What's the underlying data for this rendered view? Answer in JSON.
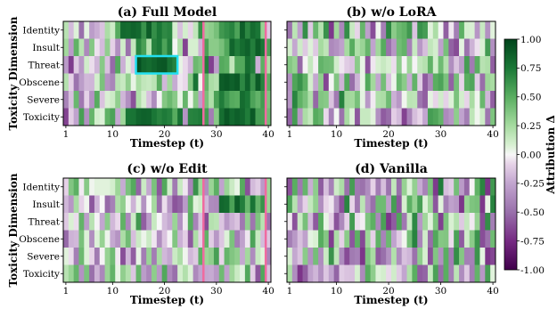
{
  "chart_data": {
    "type": "heatmap",
    "ylabel": "Toxicity Dimension",
    "xlabel": "Timestep (t)",
    "rows": [
      "Identity",
      "Insult",
      "Threat",
      "Obscene",
      "Severe",
      "Toxicity"
    ],
    "x_range": [
      1,
      40
    ],
    "x_ticks": [
      1,
      10,
      20,
      30,
      40
    ],
    "color_scale": {
      "label": "Attribution Δ",
      "min": -1.0,
      "max": 1.0,
      "ticks": [
        "1.00",
        "0.75",
        "0.50",
        "0.25",
        "0.00",
        "-0.25",
        "-0.50",
        "-0.75",
        "-1.00"
      ],
      "colormap": "PRGn",
      "low_color": "#762a83",
      "mid_color": "#f7f7f7",
      "high_color": "#1b7837"
    },
    "panels": [
      {
        "title": "(a) Full Model",
        "marker_lines_t": [
          28,
          40
        ],
        "marker_color": "#f06aa0",
        "highlight": {
          "t_start": 15,
          "t_end": 22,
          "row": "Threat",
          "color": "#22e0f0"
        },
        "values": [
          [
            0.19,
            -0.17,
            0.07,
            -0.5,
            0.05,
            -0.29,
            -0.22,
            -0.14,
            0.23,
            0.12,
            0.52,
            0.82,
            0.81,
            0.85,
            0.82,
            0.63,
            0.88,
            0.65,
            0.76,
            0.67,
            0.7,
            0.09,
            -0.15,
            0.1,
            -0.08,
            0.16,
            0.64,
            0.3,
            0.33,
            0.4,
            0.6,
            0.65,
            0.7,
            0.55,
            0.87,
            0.68,
            0.81,
            0.76,
            0.3,
            -0.12
          ],
          [
            0.26,
            -0.3,
            0.48,
            0.19,
            -0.38,
            0.36,
            -0.05,
            -0.17,
            0.32,
            -0.09,
            -0.35,
            0.11,
            -0.49,
            0.15,
            0.69,
            0.57,
            0.2,
            0.7,
            0.75,
            0.55,
            0.72,
            0.01,
            0.23,
            -0.66,
            0.09,
            0.09,
            -0.2,
            0.56,
            0.34,
            0.34,
            0.4,
            0.53,
            0.84,
            0.73,
            0.81,
            0.86,
            0.72,
            0.88,
            0.76,
            0.56
          ],
          [
            -0.3,
            -0.69,
            -0.12,
            -0.31,
            0.11,
            -0.06,
            -0.19,
            0.35,
            -0.15,
            -0.52,
            0.52,
            -0.21,
            0.07,
            -0.13,
            0.94,
            0.84,
            0.81,
            0.85,
            0.9,
            0.91,
            0.78,
            0.71,
            0.04,
            -0.07,
            -0.19,
            0.44,
            0.39,
            0.72,
            -0.67,
            -0.29,
            0.52,
            0.49,
            0.16,
            0.53,
            0.53,
            0.8,
            0.72,
            -0.21,
            0.49,
            0.22
          ],
          [
            0.2,
            -0.09,
            -0.48,
            -0.29,
            -0.18,
            -0.19,
            0.1,
            0.39,
            -0.33,
            -0.4,
            0.19,
            0.14,
            0.32,
            0.04,
            0.24,
            0.16,
            0.14,
            0.18,
            0.51,
            -0.18,
            0.26,
            -0.23,
            -0.04,
            -0.07,
            0.35,
            0.77,
            0.02,
            0.47,
            0.23,
            0.2,
            0.88,
            0.91,
            0.86,
            0.9,
            0.68,
            0.86,
            0.63,
            0.89,
            0.7,
            0.49
          ],
          [
            -0.41,
            -0.15,
            0.45,
            -0.46,
            -0.09,
            -0.34,
            0.51,
            -0.14,
            0.08,
            0.12,
            0.32,
            -0.19,
            -0.35,
            -0.61,
            0.22,
            0.09,
            -0.15,
            -0.37,
            -0.01,
            0.36,
            0.44,
            0.35,
            0.04,
            0.46,
            0.02,
            0.35,
            -0.28,
            0.4,
            0.22,
            0.56,
            0.73,
            0.61,
            0.52,
            0.5,
            0.81,
            0.75,
            0.55,
            0.47,
            0.59,
            0.38
          ],
          [
            -0.66,
            -0.1,
            -0.26,
            0.57,
            -0.35,
            0.46,
            0.1,
            0.07,
            0.48,
            0.55,
            -0.24,
            0.27,
            0.76,
            0.77,
            0.84,
            0.86,
            0.85,
            0.76,
            0.7,
            0.74,
            0.71,
            0.51,
            0.78,
            -0.33,
            0.7,
            0.71,
            0.73,
            0.59,
            -0.44,
            0.35,
            0.8,
            0.91,
            0.82,
            0.87,
            0.83,
            0.73,
            0.9,
            0.58,
            0.57,
            0.43
          ]
        ]
      },
      {
        "title": "(b) w/o LoRA",
        "marker_lines_t": [],
        "values": [
          [
            -0.49,
            0.18,
            -0.28,
            0.65,
            -0.12,
            0.45,
            0.2,
            0.63,
            -0.7,
            0.27,
            -0.39,
            0.65,
            0.14,
            -0.08,
            0.46,
            -0.28,
            -0.62,
            0.02,
            -0.43,
            0.68,
            0.34,
            0.44,
            0.48,
            0.6,
            -0.14,
            0.63,
            0.58,
            0.06,
            0.23,
            0.01,
            -0.56,
            -0.04,
            -0.43,
            0.49,
            0.09,
            0.08,
            -0.32,
            0.14,
            -0.34,
            0.06
          ],
          [
            0.1,
            -0.24,
            0.12,
            -0.12,
            0.07,
            -0.12,
            0.25,
            0.17,
            -0.38,
            -0.34,
            -0.27,
            0.25,
            0.51,
            0.22,
            0.29,
            0.46,
            -0.26,
            0.27,
            0.51,
            -0.49,
            -0.32,
            0.42,
            0.47,
            -0.42,
            0.14,
            -0.31,
            -0.16,
            0.16,
            0.1,
            -0.27,
            0.4,
            -0.55,
            -0.63,
            0.05,
            -0.48,
            -0.2,
            -0.05,
            0.08,
            0.59,
            -0.35
          ],
          [
            0.36,
            0.3,
            -0.53,
            -0.01,
            0.15,
            -0.02,
            0.47,
            0.43,
            0.42,
            0.11,
            -0.04,
            -0.11,
            -0.14,
            0.34,
            0.04,
            -0.6,
            -0.04,
            0.09,
            0.14,
            0.09,
            -0.06,
            0.33,
            -0.01,
            0.28,
            -0.01,
            0.16,
            0.2,
            0.48,
            0.1,
            0.43,
            0.2,
            -0.36,
            -0.14,
            -0.29,
            0.58,
            -0.45,
            0.5,
            0.19,
            0.22,
            -0.56
          ],
          [
            -0.35,
            0.54,
            0.63,
            0.49,
            0.1,
            -0.24,
            0.32,
            -0.65,
            0.01,
            0.37,
            -0.2,
            0.53,
            -0.51,
            -0.2,
            0.04,
            0.53,
            0.26,
            -0.25,
            0.41,
            -0.14,
            0.03,
            0.45,
            0.34,
            -0.23,
            0.47,
            -0.11,
            -0.57,
            -0.38,
            0.5,
            0.55,
            0.39,
            -0.55,
            0.41,
            -0.08,
            0.5,
            0.54,
            -0.11,
            -0.51,
            0.28,
            0.24
          ],
          [
            -0.32,
            0.69,
            0.48,
            0.39,
            0.22,
            -0.53,
            0.37,
            0.35,
            -0.14,
            -0.45,
            0.71,
            0.27,
            0.26,
            0.4,
            0.05,
            -0.31,
            -0.03,
            0.22,
            0.23,
            0.43,
            -0.21,
            -0.31,
            0.02,
            0.18,
            0.17,
            -0.47,
            -0.56,
            0.05,
            -0.08,
            0.11,
            -0.09,
            0.07,
            0.39,
            0.1,
            -0.08,
            0.24,
            0.02,
            0.45,
            -0.19,
            -0.56
          ],
          [
            -0.54,
            0.58,
            -0.32,
            0.23,
            0.15,
            0.51,
            0.46,
            -0.07,
            -0.42,
            0.01,
            -0.49,
            0.24,
            0.07,
            -0.59,
            0.14,
            0.14,
            0.06,
            -0.35,
            -0.57,
            -0.51,
            -0.1,
            -0.17,
            -0.66,
            -0.41,
            -0.16,
            -0.08,
            -0.25,
            0.58,
            0.54,
            0.47,
            -0.38,
            -0.32,
            0.33,
            -0.26,
            -0.43,
            0.17,
            0.02,
            0.12,
            -0.47,
            0.38
          ]
        ]
      },
      {
        "title": "(c) w/o Edit",
        "marker_lines_t": [
          28,
          40
        ],
        "marker_color": "#f06aa0",
        "values": [
          [
            -0.09,
            0.37,
            0.49,
            -0.03,
            0.35,
            0.02,
            0.06,
            0.06,
            0.06,
            0.1,
            0.28,
            -0.23,
            0.39,
            0.52,
            -0.54,
            0.13,
            -0.24,
            0.39,
            -0.59,
            0.53,
            0.11,
            -0.45,
            0.14,
            -0.04,
            -0.4,
            0.63,
            0.27,
            -0.36,
            0.29,
            0.49,
            -0.26,
            0.29,
            0.13,
            0.04,
            0.51,
            -0.61,
            -0.17,
            -0.11,
            -0.3,
            0.27
          ],
          [
            -0.19,
            -0.32,
            0.24,
            -0.09,
            0.02,
            -0.59,
            -0.19,
            0.0,
            -0.52,
            -0.42,
            0.22,
            0.32,
            0.02,
            -0.2,
            0.04,
            -0.34,
            0.0,
            0.25,
            -0.5,
            -0.06,
            -0.32,
            -0.6,
            -0.55,
            -0.3,
            0.48,
            0.06,
            0.11,
            -0.18,
            -0.37,
            -0.38,
            0.83,
            0.81,
            0.56,
            0.88,
            0.72,
            0.45,
            0.77,
            0.46,
            0.63,
            0.27
          ],
          [
            -0.12,
            0.08,
            -0.06,
            0.47,
            -0.29,
            0.19,
            -0.01,
            -0.25,
            0.34,
            -0.18,
            -0.07,
            0.48,
            -0.39,
            0.12,
            0.6,
            -0.56,
            -0.3,
            0.14,
            0.0,
            -0.17,
            -0.24,
            0.29,
            -0.34,
            -0.03,
            0.51,
            -0.41,
            -0.14,
            -0.63,
            0.2,
            0.18,
            -0.13,
            -0.31,
            -0.2,
            -0.14,
            -0.46,
            0.32,
            -0.47,
            0.38,
            0.19,
            -0.48
          ],
          [
            -0.52,
            -0.2,
            -0.18,
            0.4,
            0.07,
            -0.36,
            0.07,
            0.3,
            0.03,
            -0.24,
            -0.33,
            0.23,
            0.42,
            -0.16,
            0.13,
            0.03,
            0.13,
            -0.04,
            -0.36,
            -0.14,
            -0.01,
            0.37,
            -0.21,
            -0.1,
            -0.58,
            0.23,
            -0.09,
            0.48,
            -0.11,
            -0.31,
            -0.13,
            0.07,
            0.39,
            -0.44,
            -0.27,
            -0.04,
            0.55,
            0.14,
            -0.17,
            -0.13
          ],
          [
            0.06,
            -0.06,
            -0.43,
            0.44,
            0.07,
            -0.08,
            -0.45,
            -0.01,
            0.3,
            0.43,
            -0.03,
            -0.62,
            -0.19,
            -0.56,
            0.04,
            -0.44,
            0.29,
            -0.44,
            0.24,
            -0.18,
            -0.24,
            0.13,
            0.23,
            0.02,
            -0.18,
            -0.12,
            0.49,
            0.28,
            0.32,
            0.57,
            -0.08,
            0.46,
            0.37,
            0.32,
            -0.24,
            0.26,
            -0.37,
            0.14,
            0.06,
            -0.4
          ],
          [
            0.19,
            0.29,
            0.46,
            -0.34,
            0.39,
            -0.5,
            -0.2,
            -0.39,
            0.29,
            0.47,
            0.04,
            0.32,
            0.21,
            -0.13,
            0.46,
            -0.29,
            -0.39,
            0.33,
            -0.31,
            0.53,
            -0.38,
            -0.5,
            0.1,
            0.21,
            0.07,
            -0.38,
            -0.26,
            -0.24,
            -0.23,
            -0.31,
            0.43,
            -0.27,
            0.27,
            0.13,
            0.05,
            0.53,
            -0.1,
            -0.59,
            0.53,
            -0.15
          ]
        ]
      },
      {
        "title": "(d) Vanilla",
        "marker_lines_t": [],
        "values": [
          [
            -0.61,
            0.5,
            -0.46,
            0.46,
            -0.22,
            0.33,
            -0.57,
            -0.16,
            -0.42,
            0.12,
            0.23,
            -0.49,
            0.58,
            -0.46,
            -0.49,
            -0.37,
            -0.09,
            -0.44,
            -0.16,
            -0.48,
            0.16,
            -0.5,
            0.3,
            0.07,
            0.31,
            -0.23,
            -0.41,
            0.39,
            -0.69,
            0.73,
            -0.16,
            -0.11,
            0.41,
            -0.3,
            -0.53,
            -0.01,
            0.48,
            0.69,
            -0.71,
            0.6
          ],
          [
            0.55,
            0.2,
            -0.29,
            -0.09,
            0.15,
            0.31,
            -0.36,
            -0.08,
            -0.04,
            -0.34,
            -0.61,
            0.69,
            -0.08,
            -0.46,
            0.18,
            -0.33,
            -0.5,
            0.43,
            0.43,
            -0.29,
            0.58,
            -0.59,
            0.09,
            0.49,
            0.3,
            0.57,
            0.07,
            0.28,
            -0.59,
            0.06,
            -0.43,
            -0.27,
            -0.31,
            -0.71,
            0.29,
            0.38,
            0.4,
            -0.7,
            0.04,
            0.7
          ],
          [
            -0.03,
            -0.6,
            0.13,
            0.4,
            -0.17,
            -0.58,
            0.51,
            0.04,
            -0.09,
            -0.6,
            -0.38,
            -0.09,
            0.59,
            -0.06,
            -0.02,
            0.38,
            0.49,
            -0.39,
            0.56,
            -0.71,
            -0.57,
            0.54,
            -0.46,
            0.13,
            0.67,
            -0.31,
            0.27,
            0.06,
            0.38,
            -0.67,
            0.38,
            0.08,
            0.2,
            -0.12,
            0.15,
            -0.03,
            0.3,
            -0.63,
            0.65,
            -0.43
          ],
          [
            -0.43,
            -0.31,
            -0.15,
            -0.27,
            0.05,
            0.08,
            0.51,
            0.36,
            -0.68,
            0.23,
            -0.09,
            0.34,
            -0.59,
            0.49,
            -0.64,
            0.28,
            -0.09,
            0.48,
            -0.41,
            0.44,
            -0.26,
            -0.11,
            0.02,
            0.41,
            0.7,
            -0.4,
            0.11,
            -0.51,
            0.53,
            0.36,
            0.37,
            -0.06,
            0.56,
            -0.57,
            0.11,
            0.34,
            0.62,
            -0.62,
            -0.49,
            0.43
          ],
          [
            0.08,
            -0.24,
            -0.14,
            0.34,
            -0.34,
            0.41,
            -0.37,
            0.13,
            0.63,
            0.17,
            -0.37,
            -0.63,
            -0.45,
            -0.42,
            -0.71,
            0.38,
            0.24,
            -0.58,
            -0.5,
            -0.34,
            0.21,
            -0.37,
            -0.15,
            -0.19,
            -0.49,
            0.33,
            0.09,
            -0.61,
            0.37,
            -0.35,
            0.5,
            -0.44,
            0.65,
            0.36,
            -0.43,
            -0.42,
            0.62,
            0.05,
            -0.71,
            -0.65
          ],
          [
            0.23,
            -0.36,
            -0.71,
            -0.56,
            -0.27,
            -0.19,
            -0.35,
            -0.13,
            -0.26,
            -0.54,
            -0.11,
            -0.14,
            -0.15,
            0.09,
            -0.38,
            0.51,
            0.33,
            0.07,
            0.1,
            -0.07,
            0.11,
            -0.11,
            -0.25,
            0.21,
            0.5,
            -0.57,
            -0.54,
            0.14,
            0.56,
            -0.51,
            0.5,
            -0.43,
            0.18,
            -0.37,
            -0.12,
            -0.44,
            0.47,
            -0.32,
            0.58,
            0.06
          ]
        ]
      }
    ]
  }
}
